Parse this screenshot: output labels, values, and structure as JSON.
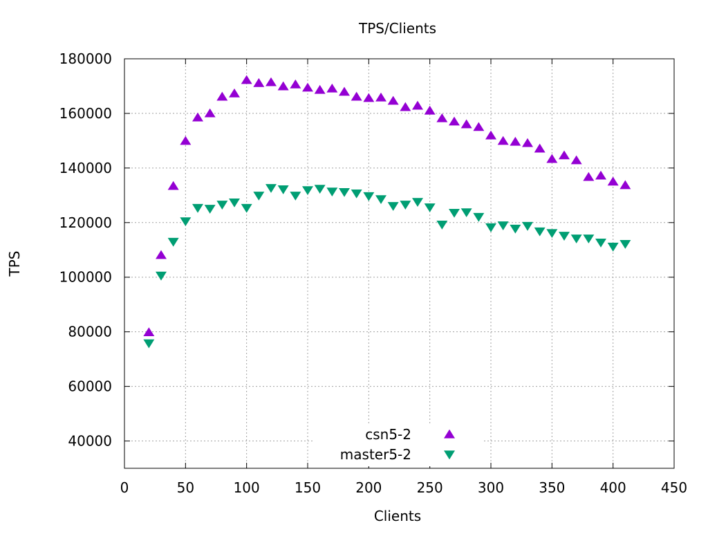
{
  "chart_data": {
    "type": "scatter",
    "title": "TPS/Clients",
    "xlabel": "Clients",
    "ylabel": "TPS",
    "xlim": [
      0,
      450
    ],
    "ylim": [
      30000,
      180000
    ],
    "xticks": [
      0,
      50,
      100,
      150,
      200,
      250,
      300,
      350,
      400,
      450
    ],
    "yticks": [
      40000,
      60000,
      80000,
      100000,
      120000,
      140000,
      160000,
      180000
    ],
    "grid": true,
    "legend_position": "bottom-center",
    "x": [
      20,
      30,
      40,
      50,
      60,
      70,
      80,
      90,
      100,
      110,
      120,
      130,
      140,
      150,
      160,
      170,
      180,
      190,
      200,
      210,
      220,
      230,
      240,
      250,
      260,
      270,
      280,
      290,
      300,
      310,
      320,
      330,
      340,
      350,
      360,
      370,
      380,
      390,
      400,
      410
    ],
    "series": [
      {
        "name": "csn5-2",
        "marker": "triangle-up",
        "color": "#9400d3",
        "values": [
          79800,
          108100,
          133400,
          149900,
          158500,
          160000,
          166100,
          167300,
          172200,
          171100,
          171400,
          169900,
          170600,
          169400,
          168600,
          169100,
          167900,
          166100,
          165600,
          165800,
          164600,
          162300,
          162800,
          161000,
          158200,
          157000,
          156000,
          155000,
          151900,
          149900,
          149600,
          149100,
          147100,
          143300,
          144600,
          142800,
          136700,
          137200,
          135000,
          133700
        ]
      },
      {
        "name": "master5-2",
        "marker": "triangle-down",
        "color": "#009e73",
        "values": [
          75800,
          100600,
          113000,
          120500,
          125400,
          125100,
          126600,
          127400,
          125400,
          129900,
          132700,
          132200,
          129900,
          131900,
          132400,
          131400,
          131200,
          130700,
          129700,
          128600,
          126100,
          126600,
          127600,
          125600,
          119300,
          123600,
          123800,
          122100,
          118300,
          119000,
          117800,
          118800,
          116800,
          116200,
          115200,
          114200,
          114200,
          112700,
          111200,
          112200
        ]
      }
    ]
  }
}
